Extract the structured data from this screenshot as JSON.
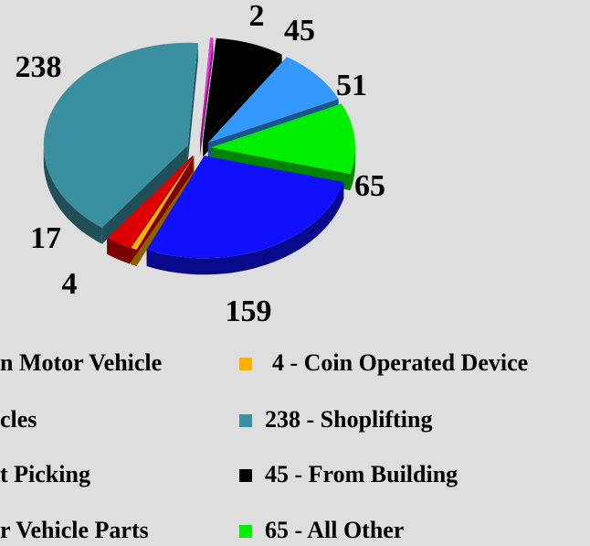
{
  "chart_data": {
    "type": "pie",
    "values": [
      2,
      45,
      51,
      65,
      159,
      4,
      17,
      238
    ],
    "colors": [
      "#ee33dd",
      "#000000",
      "#3399ff",
      "#00ee00",
      "#1010ff",
      "#ffb000",
      "#dd0000",
      "#3a8fa0"
    ],
    "legend": [
      {
        "label": "n Motor Vehicle"
      },
      {
        "label": "4 - Coin Operated Device",
        "color": "#ffb000"
      },
      {
        "label": "cles"
      },
      {
        "label": "238 - Shoplifting",
        "color": "#3a8fa0"
      },
      {
        "label": "t Picking"
      },
      {
        "label": "45 - From Building",
        "color": "#000000"
      },
      {
        "label": "r Vehicle Parts"
      },
      {
        "label": "65 - All Other",
        "color": "#00ee00"
      }
    ]
  }
}
